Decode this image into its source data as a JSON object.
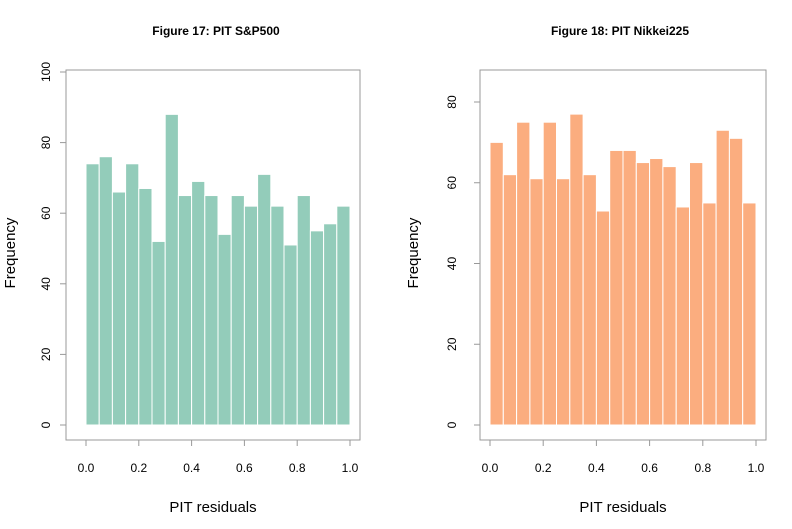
{
  "chart_data": [
    {
      "type": "bar",
      "title": "Figure 17: PIT S&P500",
      "xlabel": "PIT residuals",
      "ylabel": "Frequency",
      "bar_color": "#93CCBA",
      "xlim": [
        0,
        1
      ],
      "ylim": [
        0,
        100
      ],
      "xticks": [
        "0.0",
        "0.2",
        "0.4",
        "0.6",
        "0.8",
        "1.0"
      ],
      "yticks": [
        "0",
        "20",
        "40",
        "60",
        "80",
        "100"
      ],
      "bin_width": 0.05,
      "bin_starts": [
        0.0,
        0.05,
        0.1,
        0.15,
        0.2,
        0.25,
        0.3,
        0.35,
        0.4,
        0.45,
        0.5,
        0.55,
        0.6,
        0.65,
        0.7,
        0.75,
        0.8,
        0.85,
        0.9,
        0.95
      ],
      "values": [
        74,
        76,
        66,
        74,
        67,
        52,
        88,
        65,
        69,
        65,
        54,
        65,
        62,
        71,
        62,
        51,
        65,
        55,
        57,
        62
      ],
      "grid": false
    },
    {
      "type": "bar",
      "title": "Figure 18: PIT Nikkei225",
      "xlabel": "PIT residuals",
      "ylabel": "Frequency",
      "bar_color": "#FBAD7F",
      "xlim": [
        0,
        1
      ],
      "ylim": [
        0,
        80
      ],
      "xticks": [
        "0.0",
        "0.2",
        "0.4",
        "0.6",
        "0.8",
        "1.0"
      ],
      "yticks": [
        "0",
        "20",
        "40",
        "60",
        "80"
      ],
      "bin_width": 0.05,
      "bin_starts": [
        0.0,
        0.05,
        0.1,
        0.15,
        0.2,
        0.25,
        0.3,
        0.35,
        0.4,
        0.45,
        0.5,
        0.55,
        0.6,
        0.65,
        0.7,
        0.75,
        0.8,
        0.85,
        0.9,
        0.95
      ],
      "values": [
        70,
        62,
        75,
        61,
        75,
        61,
        77,
        62,
        53,
        68,
        68,
        65,
        66,
        64,
        54,
        65,
        55,
        73,
        71,
        55
      ],
      "grid": false
    }
  ]
}
